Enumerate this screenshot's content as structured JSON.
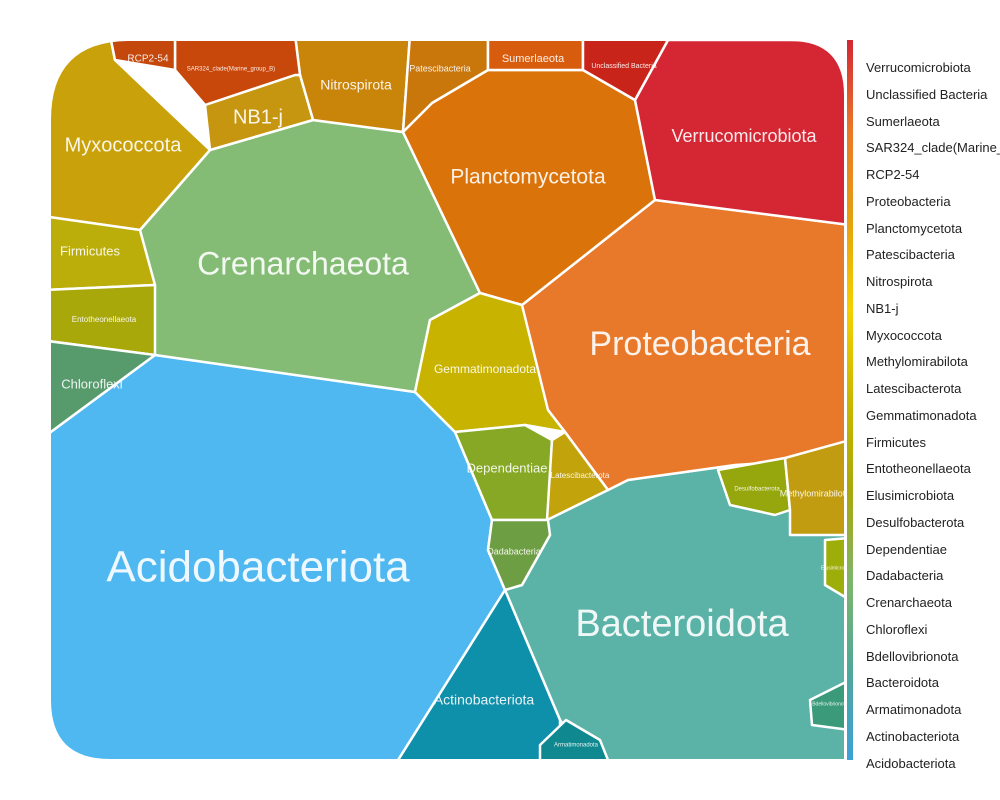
{
  "chart_data": {
    "type": "voronoi-treemap",
    "cells": [
      {
        "name": "Acidobacteriota",
        "color": "#4FB8F0"
      },
      {
        "name": "Bacteroidota",
        "color": "#5BB3A8"
      },
      {
        "name": "Proteobacteria",
        "color": "#E8782A"
      },
      {
        "name": "Crenarchaeota",
        "color": "#84BC76"
      },
      {
        "name": "Planctomycetota",
        "color": "#D9730A"
      },
      {
        "name": "Verrucomicrobiota",
        "color": "#D42633"
      },
      {
        "name": "Myxococcota",
        "color": "#C9A10A"
      },
      {
        "name": "Actinobacteriota",
        "color": "#0E8FAA"
      },
      {
        "name": "Gemmatimonadota",
        "color": "#C8B400"
      },
      {
        "name": "Dependentiae",
        "color": "#86A824"
      },
      {
        "name": "Latescibacterota",
        "color": "#C2A30C"
      },
      {
        "name": "Dadabacteria",
        "color": "#6E9E44"
      },
      {
        "name": "Nitrospirota",
        "color": "#C8850A"
      },
      {
        "name": "NB1-j",
        "color": "#C79610"
      },
      {
        "name": "Firmicutes",
        "color": "#BCAE0A"
      },
      {
        "name": "Entotheonellaeota",
        "color": "#A9A80A"
      },
      {
        "name": "Chloroflexi",
        "color": "#579A6C"
      },
      {
        "name": "Patescibacteria",
        "color": "#C9760A"
      },
      {
        "name": "Sumerlaeota",
        "color": "#D85C0E"
      },
      {
        "name": "Unclassified Bacteria",
        "color": "#C8241A"
      },
      {
        "name": "SAR324_clade(Marine_group_B)",
        "color": "#C8480C"
      },
      {
        "name": "RCP2-54",
        "color": "#C4470C"
      },
      {
        "name": "Desulfobacterota",
        "color": "#95A70C"
      },
      {
        "name": "Methylomirabilota",
        "color": "#C29C10"
      },
      {
        "name": "Armatimonadota",
        "color": "#0F8890"
      },
      {
        "name": "Elusimicrobiota",
        "color": "#9DAD0A"
      },
      {
        "name": "Bdellovibrionota",
        "color": "#3A9A7A"
      }
    ],
    "legend": {
      "position": "right",
      "entries": [
        "Verrucomicrobiota",
        "Unclassified Bacteria",
        "Sumerlaeota",
        "SAR324_clade(Marine_",
        "RCP2-54",
        "Proteobacteria",
        "Planctomycetota",
        "Patescibacteria",
        "Nitrospirota",
        "NB1-j",
        "Myxococcota",
        "Methylomirabilota",
        "Latescibacterota",
        "Gemmatimonadota",
        "Firmicutes",
        "Entotheonellaeota",
        "Elusimicrobiota",
        "Desulfobacterota",
        "Dependentiae",
        "Dadabacteria",
        "Crenarchaeota",
        "Chloroflexi",
        "Bdellovibrionota",
        "Bacteroidota",
        "Armatimonadota",
        "Actinobacteriota",
        "Acidobacteriota"
      ],
      "gradient": [
        "#D42633",
        "#E8782A",
        "#E6A010",
        "#F5D000",
        "#C9B800",
        "#A9A80A",
        "#7FB56A",
        "#4FA89A",
        "#3DA0D8"
      ]
    }
  }
}
